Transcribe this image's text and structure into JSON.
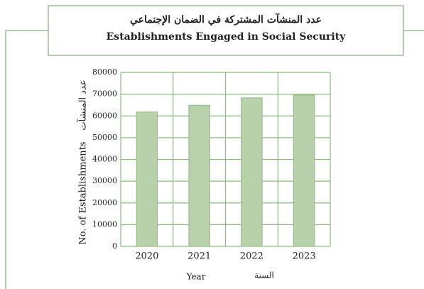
{
  "chart_data": {
    "type": "bar",
    "title": "عدد المنشآت المشتركة في الضمان الإجتماعي",
    "subtitle": "Establishments Engaged in Social Security",
    "ylabel": "No. of Establishments",
    "ylabel_arabic": "عدد المنشآت",
    "xlabel": "Year",
    "xlabel_arabic": "السنة",
    "categories": [
      "2020",
      "2021",
      "2022",
      "2023"
    ],
    "values": [
      61800,
      64900,
      68300,
      69600
    ],
    "color": "#b7d1ab",
    "ylim": [
      0,
      80000
    ],
    "yticks": [
      0,
      10000,
      20000,
      30000,
      40000,
      50000,
      60000,
      70000,
      80000
    ],
    "grid": true
  }
}
